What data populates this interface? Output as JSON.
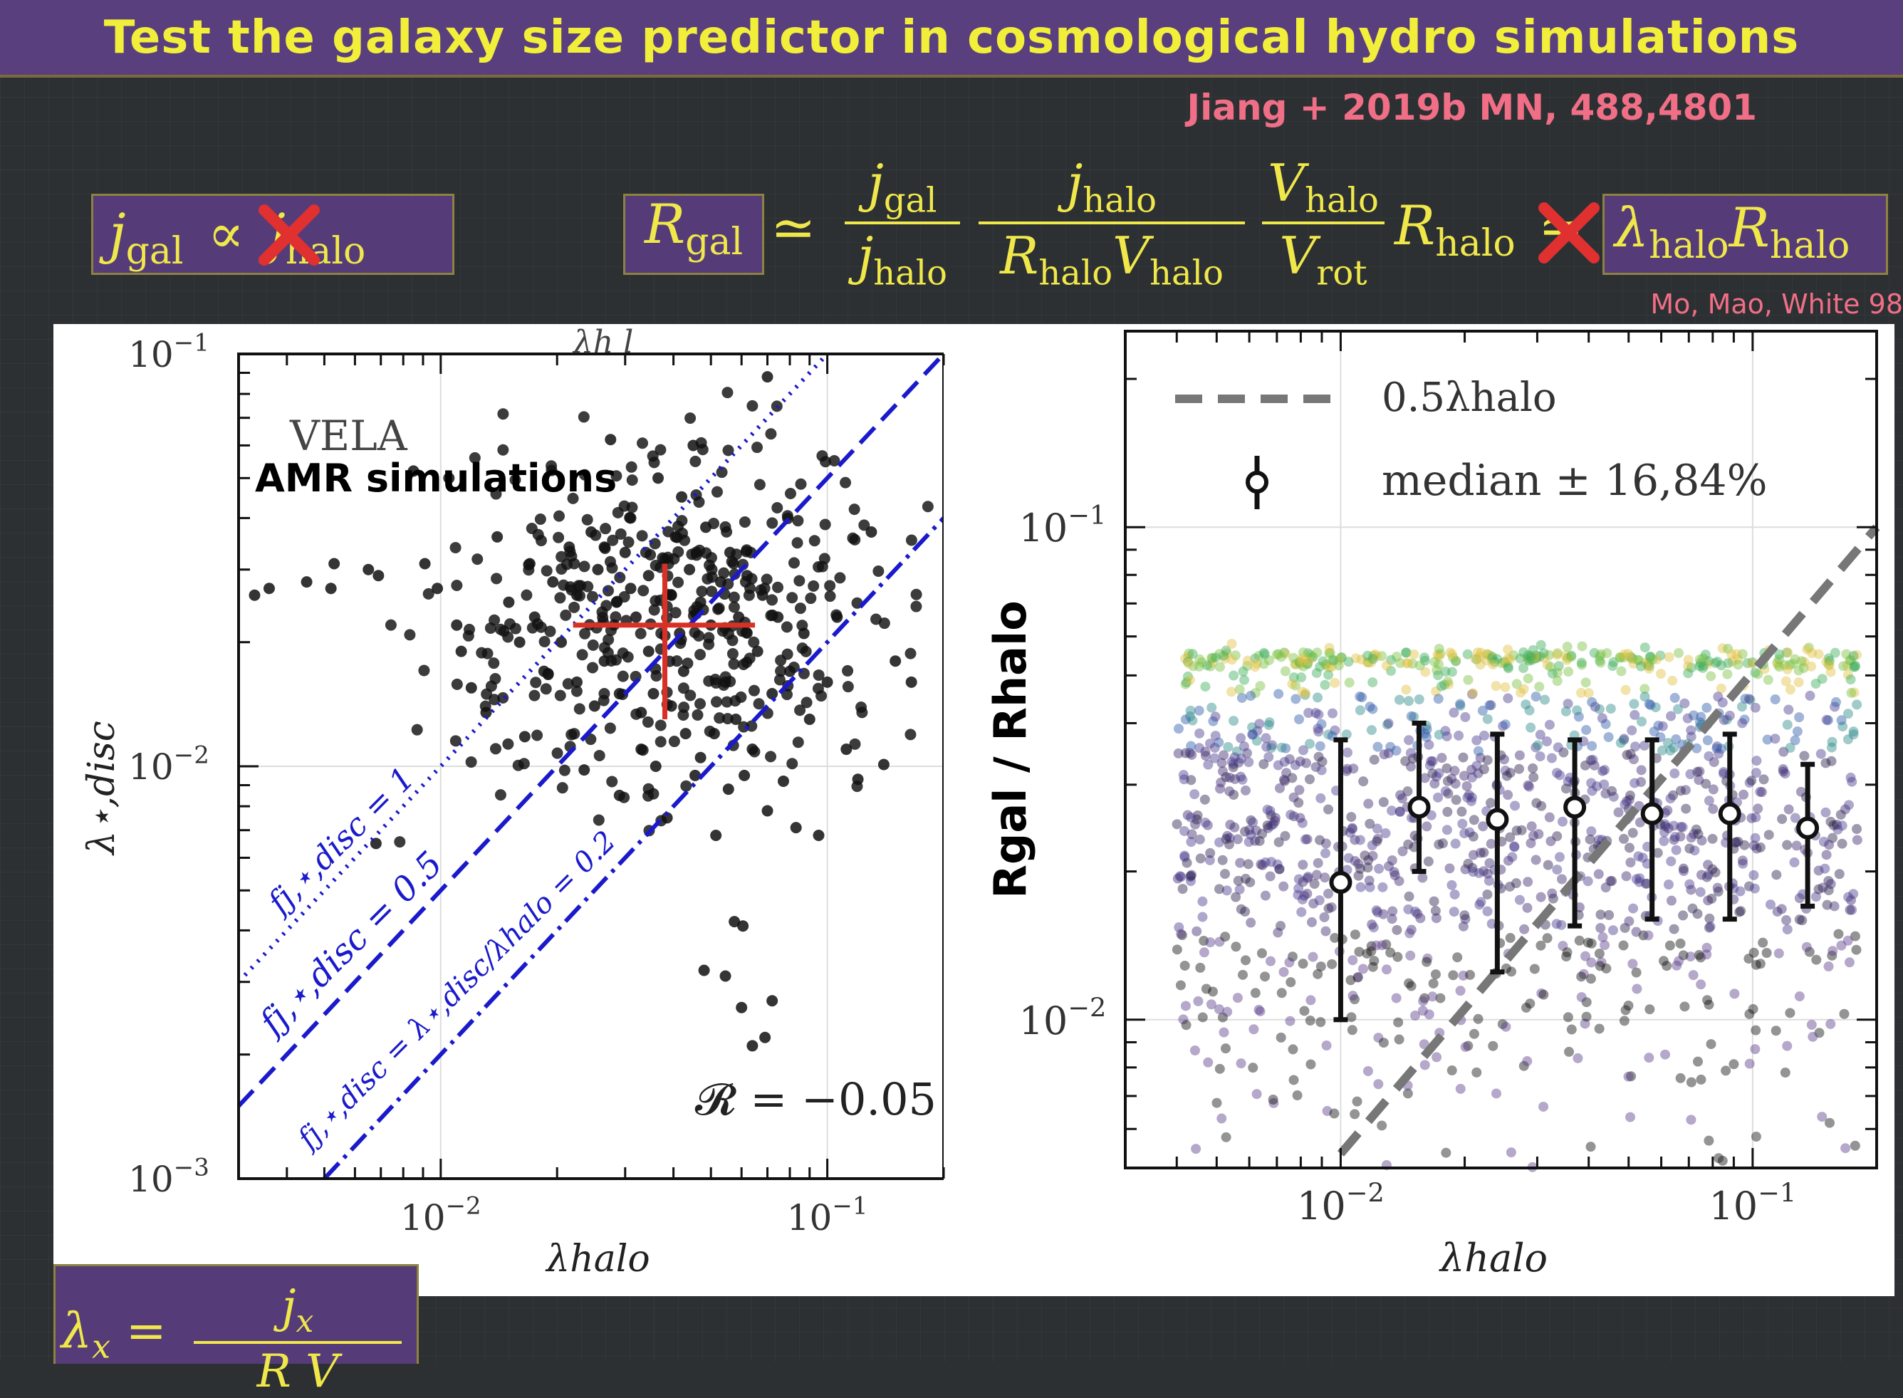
{
  "slide": {
    "title": "Test the galaxy size predictor in cosmological hydro simulations",
    "citation": "Jiang + 2019b MN, 488,4801",
    "citation2": "Mo, Mao, White 98",
    "colors": {
      "title_bg": "#5a3f7e",
      "title_text": "#f2ef3a",
      "citation": "#f06f86",
      "equation": "#f0e84a"
    }
  },
  "equations": {
    "left": {
      "lhs": "j",
      "lhs_sub": "gal",
      "op": "∝",
      "rhs": "j",
      "rhs_sub": "halo",
      "crossed": true
    },
    "main": {
      "R": "R",
      "R_sub": "gal",
      "approx": "≃",
      "f1_num": "j",
      "f1_num_sub": "gal",
      "f1_den": "j",
      "f1_den_sub": "halo",
      "f2_num": "j",
      "f2_num_sub": "halo",
      "f2_den": "R",
      "f2_den_sub": "halo",
      "f2_den2": "V",
      "f2_den2_sub": "halo",
      "f3_num": "V",
      "f3_num_sub": "halo",
      "f3_den": "V",
      "f3_den_sub": "rot",
      "tail": "R",
      "tail_sub": "halo",
      "approx2": "≃",
      "rhs_a": "λ",
      "rhs_a_sub": "halo",
      "rhs_b": "R",
      "rhs_b_sub": "halo"
    },
    "bottom": {
      "lhs": "λ",
      "lhs_sub": "x",
      "eq": "=",
      "num": "j",
      "num_sub": "x",
      "den": "R V"
    }
  },
  "chart_data": [
    {
      "type": "scatter",
      "title": "",
      "xlabel": "λhalo",
      "ylabel": "λ⋆,disc",
      "xscale": "log",
      "yscale": "log",
      "xlim": [
        0.003,
        0.2
      ],
      "ylim": [
        0.001,
        0.1
      ],
      "xticks": [
        {
          "v": 0.01,
          "base": "10",
          "exp": "−2"
        },
        {
          "v": 0.1,
          "base": "10",
          "exp": "−1"
        }
      ],
      "yticks": [
        {
          "v": 0.001,
          "base": "10",
          "exp": "−3"
        },
        {
          "v": 0.01,
          "base": "10",
          "exp": "−2"
        },
        {
          "v": 0.1,
          "base": "10",
          "exp": "−1"
        }
      ],
      "annotations": {
        "label1": "VELA",
        "label2": "AMR simulations",
        "corr": "𝓡 = −0.05",
        "top_label_fragment": "λh l",
        "line1": "fj,⋆,disc = 1",
        "line2": "fj,⋆,disc = 0.5",
        "line3": "fj,⋆,disc = λ⋆,disc/λhalo = 0.2"
      },
      "lines": [
        {
          "name": "fj=1",
          "style": "dotted",
          "factor": 1.0,
          "color": "#1a1acc"
        },
        {
          "name": "fj=0.5",
          "style": "dashed",
          "factor": 0.5,
          "color": "#1a1acc"
        },
        {
          "name": "fj=0.2",
          "style": "dashdot",
          "factor": 0.2,
          "color": "#1a1acc"
        }
      ],
      "cross": {
        "x": 0.038,
        "y": 0.022,
        "x_lo": 0.022,
        "x_hi": 0.065,
        "y_lo": 0.013,
        "y_hi": 0.031,
        "color": "#d93025"
      },
      "points": [
        [
          0.0033,
          0.026
        ],
        [
          0.0036,
          0.027
        ],
        [
          0.0045,
          0.028
        ],
        [
          0.0053,
          0.031
        ],
        [
          0.0052,
          0.027
        ],
        [
          0.0065,
          0.03
        ],
        [
          0.0069,
          0.029
        ],
        [
          0.0068,
          0.0065
        ],
        [
          0.0085,
          0.052
        ],
        [
          0.0105,
          0.05
        ],
        [
          0.0091,
          0.031
        ],
        [
          0.0098,
          0.027
        ],
        [
          0.011,
          0.022
        ],
        [
          0.0113,
          0.019
        ],
        [
          0.012,
          0.0155
        ],
        [
          0.0131,
          0.0135
        ],
        [
          0.014,
          0.036
        ],
        [
          0.015,
          0.025
        ],
        [
          0.016,
          0.02
        ],
        [
          0.017,
          0.031
        ],
        [
          0.0175,
          0.023
        ],
        [
          0.0165,
          0.0118
        ],
        [
          0.0185,
          0.017
        ],
        [
          0.0195,
          0.028
        ],
        [
          0.0205,
          0.02
        ],
        [
          0.0215,
          0.034
        ],
        [
          0.0225,
          0.026
        ],
        [
          0.0235,
          0.0098
        ],
        [
          0.0245,
          0.037
        ],
        [
          0.0255,
          0.03
        ],
        [
          0.0265,
          0.018
        ],
        [
          0.0275,
          0.062
        ],
        [
          0.0285,
          0.025
        ],
        [
          0.029,
          0.0085
        ],
        [
          0.03,
          0.033
        ],
        [
          0.031,
          0.04
        ],
        [
          0.032,
          0.023
        ],
        [
          0.033,
          0.0135
        ],
        [
          0.0345,
          0.029
        ],
        [
          0.0355,
          0.015
        ],
        [
          0.0365,
          0.05
        ],
        [
          0.0375,
          0.032
        ],
        [
          0.0385,
          0.0075
        ],
        [
          0.0395,
          0.026
        ],
        [
          0.0405,
          0.036
        ],
        [
          0.0415,
          0.021
        ],
        [
          0.0425,
          0.017
        ],
        [
          0.044,
          0.03
        ],
        [
          0.0455,
          0.0095
        ],
        [
          0.047,
          0.025
        ],
        [
          0.0485,
          0.038
        ],
        [
          0.05,
          0.022
        ],
        [
          0.0515,
          0.0068
        ],
        [
          0.053,
          0.028
        ],
        [
          0.0545,
          0.016
        ],
        [
          0.056,
          0.033
        ],
        [
          0.0575,
          0.0042
        ],
        [
          0.059,
          0.023
        ],
        [
          0.0605,
          0.0041
        ],
        [
          0.062,
          0.029
        ],
        [
          0.064,
          0.011
        ],
        [
          0.066,
          0.019
        ],
        [
          0.068,
          0.026
        ],
        [
          0.07,
          0.0078
        ],
        [
          0.072,
          0.015
        ],
        [
          0.0745,
          0.023
        ],
        [
          0.077,
          0.0092
        ],
        [
          0.08,
          0.017
        ],
        [
          0.083,
          0.0071
        ],
        [
          0.087,
          0.021
        ],
        [
          0.09,
          0.013
        ],
        [
          0.095,
          0.0068
        ],
        [
          0.1,
          0.016
        ],
        [
          0.106,
          0.023
        ],
        [
          0.112,
          0.011
        ],
        [
          0.12,
          0.0093
        ],
        [
          0.13,
          0.037
        ],
        [
          0.14,
          0.0101
        ],
        [
          0.15,
          0.018
        ],
        [
          0.165,
          0.016
        ],
        [
          0.048,
          0.0032
        ],
        [
          0.0545,
          0.0031
        ],
        [
          0.06,
          0.0026
        ],
        [
          0.072,
          0.0027
        ],
        [
          0.069,
          0.0022
        ],
        [
          0.064,
          0.0021
        ],
        [
          0.07,
          0.088
        ],
        [
          0.045,
          0.06
        ],
        [
          0.042,
          0.045
        ],
        [
          0.0265,
          0.034
        ],
        [
          0.031,
          0.027
        ],
        [
          0.0345,
          0.019
        ],
        [
          0.0395,
          0.014
        ],
        [
          0.043,
          0.012
        ],
        [
          0.051,
          0.012
        ],
        [
          0.058,
          0.013
        ],
        [
          0.025,
          0.014
        ],
        [
          0.0225,
          0.016
        ],
        [
          0.029,
          0.015
        ],
        [
          0.033,
          0.011
        ],
        [
          0.036,
          0.01
        ],
        [
          0.047,
          0.0105
        ],
        [
          0.0555,
          0.0088
        ],
        [
          0.061,
          0.0095
        ]
      ]
    },
    {
      "type": "scatter",
      "title": "",
      "xlabel": "λhalo",
      "ylabel": "Rgal / Rhalo",
      "xscale": "log",
      "yscale": "log",
      "xlim": [
        0.003,
        0.2
      ],
      "ylim": [
        0.005,
        0.25
      ],
      "xticks": [
        {
          "v": 0.01,
          "base": "10",
          "exp": "−2"
        },
        {
          "v": 0.1,
          "base": "10",
          "exp": "−1"
        }
      ],
      "yticks": [
        {
          "v": 0.01,
          "base": "10",
          "exp": "−2"
        },
        {
          "v": 0.1,
          "base": "10",
          "exp": "−1"
        }
      ],
      "legend": {
        "entry1": "0.5λhalo",
        "entry2": "median ± 16,84%",
        "placement": "top-left"
      },
      "reference_line": {
        "name": "0.5λhalo",
        "factor": 0.5,
        "color": "#777777"
      },
      "medians": [
        {
          "x": 0.01,
          "y": 0.019,
          "lo": 0.01,
          "hi": 0.037
        },
        {
          "x": 0.0155,
          "y": 0.027,
          "lo": 0.02,
          "hi": 0.04
        },
        {
          "x": 0.024,
          "y": 0.0255,
          "lo": 0.0125,
          "hi": 0.038
        },
        {
          "x": 0.037,
          "y": 0.027,
          "lo": 0.0155,
          "hi": 0.037
        },
        {
          "x": 0.057,
          "y": 0.0262,
          "lo": 0.016,
          "hi": 0.037
        },
        {
          "x": 0.088,
          "y": 0.0262,
          "lo": 0.016,
          "hi": 0.038
        },
        {
          "x": 0.136,
          "y": 0.0245,
          "lo": 0.017,
          "hi": 0.033
        }
      ],
      "point_colors": [
        "#2b1f4a",
        "#3d2a70",
        "#4a3b8f",
        "#2e5aa8",
        "#2f8a8a",
        "#3fae5a",
        "#7bc043",
        "#e0c040",
        "#111111",
        "#5b3d8a"
      ]
    }
  ]
}
